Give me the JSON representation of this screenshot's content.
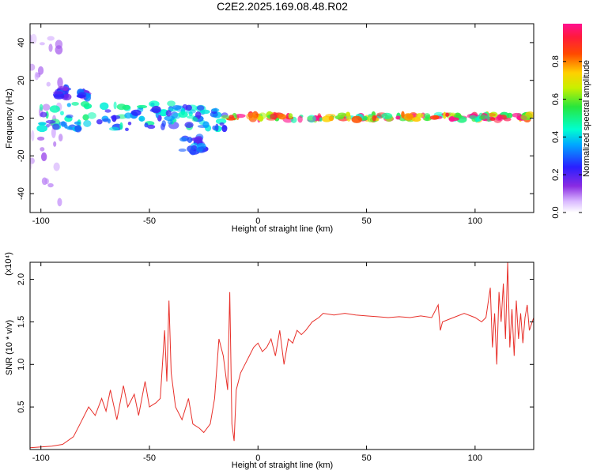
{
  "title": "C2E2.2025.169.08.48.R02",
  "chart_data": [
    {
      "type": "heatmap",
      "title": "C2E2.2025.169.08.48.R02",
      "xlabel": "Height of straight line (km)",
      "ylabel": "Frequency (Hz)",
      "xlim": [
        -105,
        127
      ],
      "ylim": [
        -50,
        50
      ],
      "xticks": [
        -100,
        -50,
        0,
        50,
        100
      ],
      "yticks": [
        -40,
        -20,
        0,
        20,
        40
      ],
      "xtick_labels": [
        "-100",
        "-50",
        "0",
        "50",
        "100"
      ],
      "ytick_labels": [
        "-40",
        "-20",
        "0",
        "20",
        "40"
      ],
      "colorbar": {
        "label": "Normalized spectral amplitude",
        "range": [
          0,
          1
        ],
        "ticks": [
          0.0,
          0.2,
          0.4,
          0.6,
          0.8
        ],
        "tick_labels": [
          "0.0",
          "0.2",
          "0.4",
          "0.6",
          "0.8"
        ],
        "colormap": "rainbow (white-violet-blue-cyan-green-yellow-orange-red-magenta)"
      },
      "features": [
        {
          "description": "scattered weak energy, wide frequency spread",
          "x_range": [
            -105,
            -90
          ],
          "freq_range": [
            -50,
            50
          ],
          "amplitude": 0.1
        },
        {
          "description": "main band near 0 Hz, patchy",
          "x_range": [
            -100,
            -15
          ],
          "freq_range": [
            -6,
            8
          ],
          "amplitude": 0.45
        },
        {
          "description": "isolated blob",
          "x_range": [
            -92,
            -88
          ],
          "freq_range": [
            11,
            17
          ],
          "amplitude": 0.3
        },
        {
          "description": "isolated blob",
          "x_range": [
            -82,
            -78
          ],
          "freq_range": [
            10,
            14
          ],
          "amplitude": 0.3
        },
        {
          "description": "descending branch",
          "x_range": [
            -35,
            -25
          ],
          "freq_range": [
            -18,
            -10
          ],
          "amplitude": 0.35
        },
        {
          "description": "narrow strong line at ~0-1 Hz",
          "x_range": [
            -15,
            127
          ],
          "freq_range": [
            -1,
            2
          ],
          "amplitude": 0.95
        }
      ]
    },
    {
      "type": "line",
      "xlabel": "Height of straight line (km)",
      "ylabel": "SNR (10 * v/v)",
      "y_multiplier": "(x10⁴)",
      "xlim": [
        -105,
        127
      ],
      "ylim": [
        0,
        2.2
      ],
      "xticks": [
        -100,
        -50,
        0,
        50,
        100
      ],
      "yticks": [
        0.5,
        1.0,
        1.5,
        2.0
      ],
      "xtick_labels": [
        "-100",
        "-50",
        "0",
        "50",
        "100"
      ],
      "ytick_labels": [
        "0.5",
        "1.0",
        "1.5",
        "2.0"
      ],
      "color": "#e8302a",
      "series": [
        {
          "x": [
            -105,
            -100,
            -95,
            -90,
            -85,
            -82,
            -78,
            -75,
            -72,
            -70,
            -68,
            -65,
            -62,
            -60,
            -57,
            -55,
            -52,
            -50,
            -47,
            -45,
            -43,
            -42,
            -41,
            -40,
            -38,
            -35,
            -32,
            -30,
            -27,
            -25,
            -22,
            -20,
            -18,
            -16,
            -14,
            -13,
            -12,
            -11,
            -10,
            -8,
            -6,
            -4,
            -2,
            0,
            2,
            4,
            6,
            8,
            10,
            12,
            14,
            16,
            18,
            20,
            22,
            25,
            28,
            30,
            35,
            40,
            45,
            50,
            55,
            60,
            65,
            70,
            75,
            80,
            83,
            84,
            85,
            90,
            95,
            100,
            103,
            105,
            107,
            108,
            109,
            110,
            111,
            112,
            113,
            114,
            115,
            116,
            117,
            118,
            119,
            120,
            121,
            122,
            123,
            124,
            125,
            127
          ],
          "y": [
            0.02,
            0.03,
            0.04,
            0.06,
            0.15,
            0.3,
            0.5,
            0.4,
            0.6,
            0.45,
            0.7,
            0.35,
            0.75,
            0.5,
            0.65,
            0.4,
            0.8,
            0.5,
            0.55,
            0.6,
            1.4,
            0.8,
            1.75,
            0.9,
            0.5,
            0.35,
            0.6,
            0.3,
            0.25,
            0.2,
            0.3,
            0.6,
            1.3,
            1.1,
            0.7,
            1.85,
            0.3,
            0.1,
            0.7,
            0.9,
            1.0,
            1.1,
            1.2,
            1.25,
            1.15,
            1.2,
            1.3,
            1.1,
            1.4,
            1.0,
            1.3,
            1.25,
            1.4,
            1.35,
            1.4,
            1.5,
            1.55,
            1.6,
            1.58,
            1.6,
            1.58,
            1.57,
            1.56,
            1.55,
            1.56,
            1.55,
            1.57,
            1.55,
            1.7,
            1.4,
            1.5,
            1.55,
            1.6,
            1.55,
            1.5,
            1.55,
            1.9,
            1.2,
            1.6,
            1.0,
            1.85,
            1.5,
            1.95,
            1.3,
            2.2,
            1.2,
            1.65,
            1.1,
            1.75,
            1.3,
            1.6,
            1.25,
            1.55,
            1.7,
            1.4,
            1.55
          ]
        }
      ]
    }
  ]
}
